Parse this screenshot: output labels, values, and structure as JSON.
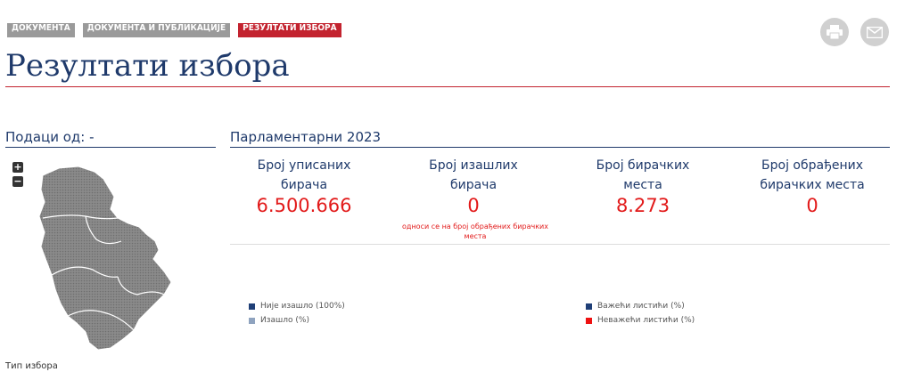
{
  "tabs": [
    "ДОКУМЕНТА",
    "ДОКУМЕНТА И ПУБЛИКАЦИЈЕ",
    "РЕЗУЛТАТИ ИЗБОРА"
  ],
  "page_title": "Резултати избора",
  "data_from": "Подаци од: -",
  "section_title": "Парламентарни 2023",
  "zoom_in": "+",
  "zoom_out": "−",
  "stats": [
    {
      "label1": "Број уписаних",
      "label2": "бирача",
      "value": "6.500.666"
    },
    {
      "label1": "Број изашлих",
      "label2": "бирача",
      "value": "0"
    },
    {
      "label1": "Број бирачких",
      "label2": "места",
      "value": "8.273"
    },
    {
      "label1": "Број обрађених",
      "label2": "бирачких места",
      "value": "0"
    }
  ],
  "turnout_note": "односи се на број обрађених бирачких места",
  "legend": [
    {
      "label": "Није изашло (100%)",
      "color": "#1f3f77"
    },
    {
      "label": "Изашло (%)",
      "color": "#8fa3bf"
    },
    {
      "label": "Важећи листићи (%)",
      "color": "#1f3f77"
    },
    {
      "label": "Неважећи листићи (%)",
      "color": "#ee1111"
    }
  ],
  "footnote": "Тип избора",
  "colors": {
    "accent": "#c3232f",
    "title": "#1f3a6b",
    "value": "#e21a1a"
  },
  "icons": [
    "print-icon",
    "mail-icon",
    "map-of-serbia"
  ]
}
